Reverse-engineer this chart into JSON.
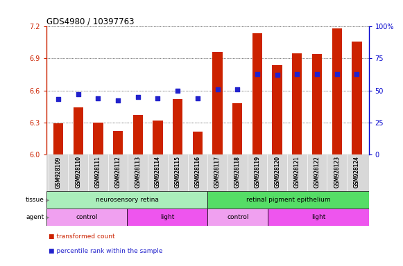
{
  "title": "GDS4980 / 10397763",
  "samples": [
    "GSM928109",
    "GSM928110",
    "GSM928111",
    "GSM928112",
    "GSM928113",
    "GSM928114",
    "GSM928115",
    "GSM928116",
    "GSM928117",
    "GSM928118",
    "GSM928119",
    "GSM928120",
    "GSM928121",
    "GSM928122",
    "GSM928123",
    "GSM928124"
  ],
  "bar_values": [
    6.29,
    6.44,
    6.3,
    6.22,
    6.37,
    6.32,
    6.52,
    6.21,
    6.96,
    6.48,
    7.14,
    6.84,
    6.95,
    6.94,
    7.18,
    7.06
  ],
  "dot_values": [
    43,
    47,
    44,
    42,
    45,
    44,
    50,
    44,
    51,
    51,
    63,
    62,
    63,
    63,
    63,
    63
  ],
  "ylim_left": [
    6.0,
    7.2
  ],
  "ylim_right": [
    0,
    100
  ],
  "yticks_left": [
    6.0,
    6.3,
    6.6,
    6.9,
    7.2
  ],
  "yticks_right": [
    0,
    25,
    50,
    75,
    100
  ],
  "bar_color": "#cc2200",
  "dot_color": "#2222cc",
  "tissue_groups": [
    {
      "label": "neurosensory retina",
      "start": 0,
      "end": 8,
      "color": "#aaeebb"
    },
    {
      "label": "retinal pigment epithelium",
      "start": 8,
      "end": 16,
      "color": "#55dd66"
    }
  ],
  "agent_groups": [
    {
      "label": "control",
      "start": 0,
      "end": 4,
      "color": "#f0a0f0"
    },
    {
      "label": "light",
      "start": 4,
      "end": 8,
      "color": "#ee55ee"
    },
    {
      "label": "control",
      "start": 8,
      "end": 11,
      "color": "#f0a0f0"
    },
    {
      "label": "light",
      "start": 11,
      "end": 16,
      "color": "#ee55ee"
    }
  ],
  "legend_items": [
    {
      "label": "transformed count",
      "color": "#cc2200"
    },
    {
      "label": "percentile rank within the sample",
      "color": "#2222cc"
    }
  ],
  "bg_color": "#ffffff",
  "bar_bottom": 6.0,
  "right_axis_color": "#0000cc",
  "left_axis_color": "#cc2200"
}
